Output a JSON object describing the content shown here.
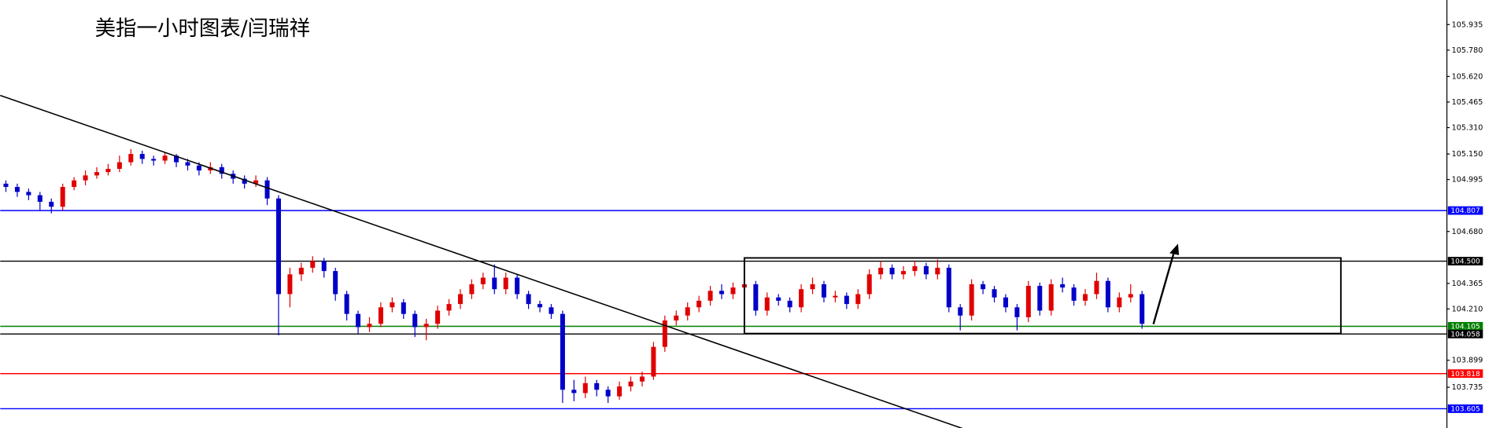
{
  "chart_data": {
    "type": "candlestick",
    "title": "美指一小时图表/闫瑞祥",
    "up_color": "#e00000",
    "down_color": "#0000c8",
    "ylim": [
      103.488,
      106.084
    ],
    "yticks": [
      105.935,
      {
        "value": 105.78,
        "label": "105.780"
      },
      {
        "value": 105.62,
        "label": "105.620"
      },
      105.465,
      {
        "value": 105.31,
        "label": "105.310"
      },
      {
        "value": 105.15,
        "label": "105.150"
      },
      104.995,
      {
        "value": 104.68,
        "label": "104.680"
      },
      104.365,
      {
        "value": 104.21,
        "label": "104.210"
      },
      103.899,
      103.735
    ],
    "levels": [
      {
        "value": 104.807,
        "label": "104.807",
        "color": "#0000ff"
      },
      {
        "value": 104.5,
        "label": "104.500",
        "color": "#000000"
      },
      {
        "value": 104.105,
        "label": "104.105",
        "color": "#008000"
      },
      {
        "value": 104.058,
        "label": "104.058",
        "color": "#000000"
      },
      {
        "value": 103.818,
        "label": "103.818",
        "color": "#ff0000"
      },
      {
        "value": 103.605,
        "label": "103.605",
        "color": "#0000ff"
      }
    ],
    "ohlc": [
      [
        104.97,
        104.99,
        104.92,
        104.95
      ],
      [
        104.95,
        104.97,
        104.89,
        104.92
      ],
      [
        104.92,
        104.94,
        104.87,
        104.9
      ],
      [
        104.9,
        104.92,
        104.81,
        104.86
      ],
      [
        104.86,
        104.88,
        104.79,
        104.83
      ],
      [
        104.83,
        104.97,
        104.81,
        104.95
      ],
      [
        104.95,
        105.01,
        104.93,
        104.99
      ],
      [
        104.99,
        105.05,
        104.96,
        105.02
      ],
      [
        105.02,
        105.07,
        105.0,
        105.04
      ],
      [
        105.04,
        105.09,
        105.02,
        105.06
      ],
      [
        105.06,
        105.14,
        105.04,
        105.1
      ],
      [
        105.1,
        105.18,
        105.08,
        105.15
      ],
      [
        105.15,
        105.17,
        105.09,
        105.12
      ],
      [
        105.12,
        105.14,
        105.08,
        105.11
      ],
      [
        105.11,
        105.16,
        105.09,
        105.14
      ],
      [
        105.14,
        105.15,
        105.07,
        105.1
      ],
      [
        105.1,
        105.12,
        105.05,
        105.08
      ],
      [
        105.08,
        105.1,
        105.02,
        105.05
      ],
      [
        105.05,
        105.1,
        105.03,
        105.07
      ],
      [
        105.07,
        105.09,
        105.0,
        105.03
      ],
      [
        105.03,
        105.05,
        104.97,
        105.0
      ],
      [
        105.0,
        105.02,
        104.94,
        104.97
      ],
      [
        104.97,
        105.02,
        104.95,
        104.99
      ],
      [
        104.99,
        105.01,
        104.84,
        104.88
      ],
      [
        104.88,
        104.9,
        104.05,
        104.3
      ],
      [
        104.3,
        104.46,
        104.22,
        104.42
      ],
      [
        104.42,
        104.49,
        104.38,
        104.46
      ],
      [
        104.46,
        104.53,
        104.43,
        104.5
      ],
      [
        104.5,
        104.52,
        104.4,
        104.44
      ],
      [
        104.44,
        104.46,
        104.26,
        104.3
      ],
      [
        104.3,
        104.32,
        104.14,
        104.18
      ],
      [
        104.18,
        104.2,
        104.06,
        104.1
      ],
      [
        104.1,
        104.16,
        104.07,
        104.12
      ],
      [
        104.12,
        104.25,
        104.1,
        104.22
      ],
      [
        104.22,
        104.28,
        104.19,
        104.25
      ],
      [
        104.25,
        104.27,
        104.15,
        104.18
      ],
      [
        104.18,
        104.2,
        104.04,
        104.1
      ],
      [
        104.1,
        104.15,
        104.02,
        104.12
      ],
      [
        104.12,
        104.23,
        104.09,
        104.2
      ],
      [
        104.2,
        104.27,
        104.17,
        104.24
      ],
      [
        104.24,
        104.33,
        104.21,
        104.3
      ],
      [
        104.3,
        104.39,
        104.27,
        104.36
      ],
      [
        104.36,
        104.43,
        104.33,
        104.4
      ],
      [
        104.4,
        104.48,
        104.3,
        104.33
      ],
      [
        104.33,
        104.43,
        104.3,
        104.4
      ],
      [
        104.4,
        104.42,
        104.27,
        104.3
      ],
      [
        104.3,
        104.32,
        104.21,
        104.24
      ],
      [
        104.24,
        104.26,
        104.19,
        104.22
      ],
      [
        104.22,
        104.24,
        104.15,
        104.18
      ],
      [
        104.18,
        104.2,
        103.64,
        103.72
      ],
      [
        103.72,
        103.78,
        103.65,
        103.7
      ],
      [
        103.7,
        103.8,
        103.67,
        103.76
      ],
      [
        103.76,
        103.78,
        103.68,
        103.72
      ],
      [
        103.72,
        103.74,
        103.64,
        103.68
      ],
      [
        103.68,
        103.77,
        103.66,
        103.74
      ],
      [
        103.74,
        103.8,
        103.71,
        103.77
      ],
      [
        103.77,
        103.83,
        103.74,
        103.8
      ],
      [
        103.8,
        104.01,
        103.78,
        103.98
      ],
      [
        103.98,
        104.17,
        103.95,
        104.14
      ],
      [
        104.14,
        104.2,
        104.11,
        104.17
      ],
      [
        104.17,
        104.25,
        104.14,
        104.22
      ],
      [
        104.22,
        104.29,
        104.19,
        104.26
      ],
      [
        104.26,
        104.35,
        104.23,
        104.32
      ],
      [
        104.32,
        104.36,
        104.27,
        104.3
      ],
      [
        104.3,
        104.37,
        104.27,
        104.34
      ],
      [
        104.34,
        104.39,
        104.31,
        104.36
      ],
      [
        104.36,
        104.38,
        104.17,
        104.2
      ],
      [
        104.2,
        104.31,
        104.17,
        104.28
      ],
      [
        104.28,
        104.3,
        104.23,
        104.26
      ],
      [
        104.26,
        104.28,
        104.19,
        104.22
      ],
      [
        104.22,
        104.36,
        104.19,
        104.33
      ],
      [
        104.33,
        104.4,
        104.3,
        104.36
      ],
      [
        104.36,
        104.38,
        104.25,
        104.28
      ],
      [
        104.28,
        104.32,
        104.25,
        104.29
      ],
      [
        104.29,
        104.31,
        104.21,
        104.24
      ],
      [
        104.24,
        104.33,
        104.21,
        104.3
      ],
      [
        104.3,
        104.45,
        104.27,
        104.42
      ],
      [
        104.42,
        104.5,
        104.39,
        104.46
      ],
      [
        104.46,
        104.48,
        104.39,
        104.42
      ],
      [
        104.42,
        104.47,
        104.39,
        104.44
      ],
      [
        104.44,
        104.5,
        104.41,
        104.47
      ],
      [
        104.47,
        104.49,
        104.39,
        104.42
      ],
      [
        104.42,
        104.51,
        104.39,
        104.46
      ],
      [
        104.46,
        104.48,
        104.19,
        104.22
      ],
      [
        104.22,
        104.24,
        104.08,
        104.17
      ],
      [
        104.17,
        104.39,
        104.14,
        104.36
      ],
      [
        104.36,
        104.38,
        104.3,
        104.33
      ],
      [
        104.33,
        104.35,
        104.25,
        104.28
      ],
      [
        104.28,
        104.3,
        104.19,
        104.22
      ],
      [
        104.22,
        104.24,
        104.08,
        104.16
      ],
      [
        104.16,
        104.38,
        104.13,
        104.35
      ],
      [
        104.35,
        104.37,
        104.17,
        104.2
      ],
      [
        104.2,
        104.39,
        104.17,
        104.36
      ],
      [
        104.36,
        104.4,
        104.31,
        104.34
      ],
      [
        104.34,
        104.36,
        104.23,
        104.26
      ],
      [
        104.26,
        104.33,
        104.23,
        104.3
      ],
      [
        104.3,
        104.43,
        104.27,
        104.38
      ],
      [
        104.38,
        104.4,
        104.19,
        104.22
      ],
      [
        104.22,
        104.31,
        104.19,
        104.28
      ],
      [
        104.28,
        104.36,
        104.25,
        104.3
      ],
      [
        104.3,
        104.32,
        104.09,
        104.12
      ]
    ]
  }
}
